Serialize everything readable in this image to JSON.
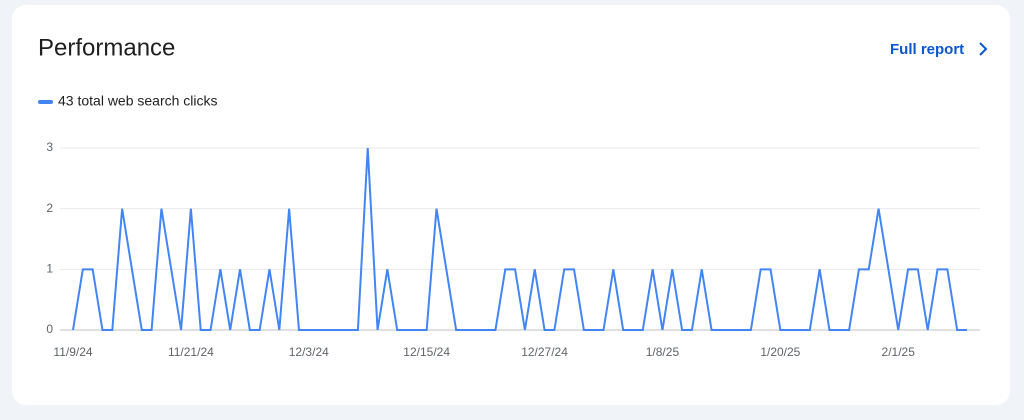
{
  "header": {
    "title": "Performance",
    "link": "Full report"
  },
  "chart_data": {
    "type": "line",
    "categories": [
      "11/9/24",
      null,
      null,
      null,
      null,
      null,
      null,
      null,
      null,
      null,
      null,
      null,
      "11/21/24",
      null,
      null,
      null,
      null,
      null,
      null,
      null,
      null,
      null,
      null,
      null,
      "12/3/24",
      null,
      null,
      null,
      null,
      null,
      null,
      null,
      null,
      null,
      null,
      null,
      "12/15/24",
      null,
      null,
      null,
      null,
      null,
      null,
      null,
      null,
      null,
      null,
      null,
      "12/27/24",
      null,
      null,
      null,
      null,
      null,
      null,
      null,
      null,
      null,
      null,
      null,
      "1/8/25",
      null,
      null,
      null,
      null,
      null,
      null,
      null,
      null,
      null,
      null,
      null,
      "1/20/25",
      null,
      null,
      null,
      null,
      null,
      null,
      null,
      null,
      null,
      null,
      null,
      "2/1/25",
      null,
      null,
      null,
      null,
      null,
      null,
      null
    ],
    "series": [
      {
        "name": "43 total web search clicks",
        "color": "#4285f4",
        "values": [
          0,
          1,
          1,
          0,
          0,
          2,
          1,
          0,
          0,
          2,
          1,
          0,
          2,
          0,
          0,
          1,
          0,
          1,
          0,
          0,
          1,
          0,
          2,
          0,
          0,
          0,
          0,
          0,
          0,
          0,
          3,
          0,
          1,
          0,
          0,
          0,
          0,
          2,
          1,
          0,
          0,
          0,
          0,
          0,
          1,
          1,
          0,
          1,
          0,
          0,
          1,
          1,
          0,
          0,
          0,
          1,
          0,
          0,
          0,
          1,
          0,
          1,
          0,
          0,
          1,
          0,
          0,
          0,
          0,
          0,
          1,
          1,
          0,
          0,
          0,
          0,
          1,
          0,
          0,
          0,
          1,
          1,
          2,
          1,
          0,
          1,
          1,
          0,
          1,
          1,
          0,
          0
        ]
      }
    ],
    "ylim": [
      0,
      3
    ],
    "yticks": [
      0,
      1,
      2,
      3
    ],
    "grid": true
  }
}
